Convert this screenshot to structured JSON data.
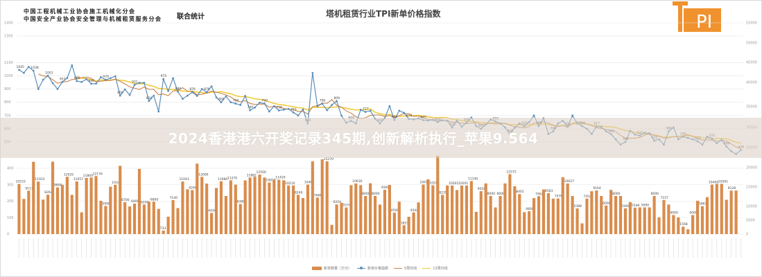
{
  "header": {
    "org_line1": "中国工程机械工业协会施工机械化分会",
    "org_line2": "中国安全产业协会安全管理与机械租赁服务分会",
    "joint_label": "联合统计",
    "title": "塔机租赁行业TPI新单价格指数",
    "logo_text": "TPI",
    "logo_color": "#F0922E"
  },
  "watermark": {
    "text": "2024香港港六开奖记录345期,创新解析执行_苹果9.564"
  },
  "legend": {
    "items": [
      {
        "label": "新单数量（万元）",
        "type": "bar",
        "color": "#D98C4C"
      },
      {
        "label": "新单价格指数",
        "type": "line-marker",
        "color": "#5B8DB8"
      },
      {
        "label": "5周均线",
        "type": "line",
        "color": "#C9824A"
      },
      {
        "label": "13周均线",
        "type": "line",
        "color": "#EFCB3A"
      }
    ]
  },
  "axes": {
    "left_upper_ticks": [
      "1400",
      "1300",
      "1100",
      "1000",
      "900",
      "800",
      "700",
      "600",
      "500"
    ],
    "left_lower_ticks": [
      "400",
      "300",
      "200",
      "100",
      "0"
    ],
    "right_ticks": [
      "55000",
      "50000",
      "45000",
      "40000",
      "35000",
      "30000",
      "25000",
      "20000",
      "15000",
      "10000",
      "5000",
      "0"
    ]
  },
  "chart_data": {
    "type": "bar+line",
    "title": "塔机租赁行业TPI新单价格指数",
    "legend_position": "bottom",
    "grid": true,
    "series": [
      {
        "name": "新单价格指数",
        "type": "line",
        "axis": "left",
        "values": [
          1045,
          1022,
          1067,
          1038,
          900,
          970,
          1001,
          944,
          900,
          953,
          983,
          1079,
          960,
          953,
          974,
          940,
          940,
          990,
          970,
          982,
          997,
          850,
          897,
          855,
          931,
          947,
          947,
          810,
          850,
          730,
          975,
          885,
          982,
          880,
          826,
          850,
          876,
          848,
          900,
          876,
          920,
          837,
          800,
          844,
          800,
          790,
          780,
          848,
          740,
          760,
          797,
          790,
          730,
          770,
          738,
          744,
          750,
          723,
          700,
          745,
          640,
          1021,
          770,
          790,
          740,
          779,
          809,
          699,
          645,
          659,
          640,
          743,
          727,
          736,
          675,
          640,
          680,
          771,
          666,
          736,
          720,
          674,
          670,
          678,
          665,
          662,
          667,
          650,
          664,
          660,
          610,
          660,
          615,
          646,
          684,
          620,
          600,
          630,
          670,
          655,
          640,
          610,
          560,
          608,
          640,
          620,
          650,
          700,
          620,
          680,
          560,
          580,
          640,
          660,
          616,
          700,
          640,
          620,
          600,
          560,
          617,
          613,
          580,
          560,
          520,
          480,
          500,
          584,
          556,
          547,
          570,
          565,
          510,
          520,
          480,
          580,
          610,
          520,
          540,
          530,
          520,
          505,
          480,
          540,
          525,
          490,
          516,
          466,
          430,
          409,
          439
        ]
      },
      {
        "name": "新单数量（万元）",
        "type": "bar",
        "axis": "right",
        "values": [
          10533,
          7382,
          9111,
          15184,
          11033,
          7233,
          8264,
          15210,
          9800,
          10336,
          12025,
          8233,
          11057,
          4572,
          11800,
          11883,
          12176,
          7000,
          5900,
          9951,
          10341,
          14343,
          6700,
          5800,
          6400,
          13686,
          6200,
          6800,
          6800,
          5300,
          733,
          3645,
          7140,
          5455,
          11043,
          9400,
          9240,
          14800,
          12000,
          10600,
          4436,
          9686,
          11080,
          8000,
          11270,
          10395,
          6300,
          11273,
          11882,
          12038,
          12500,
          11879,
          10810,
          11400,
          11420,
          11300,
          10210,
          10209,
          8240,
          7566,
          10400,
          15270,
          7666,
          15700,
          15270,
          1932,
          6224,
          6580,
          5574,
          10262,
          10630,
          10277,
          8000,
          10664,
          8000,
          6200,
          9300,
          10310,
          4500,
          6800,
          1851,
          3630,
          4544,
          6657,
          10410,
          11500,
          10240,
          16443,
          8235,
          10210,
          10201,
          9248,
          10201,
          10194,
          11140,
          4672,
          9020,
          10637,
          8000,
          5600,
          8000,
          10650,
          12572,
          10050,
          8401,
          4600,
          4800,
          7555,
          7962,
          9363,
          8583,
          7440,
          7476,
          11946,
          10627,
          8000,
          5388,
          2250,
          7454,
          9000,
          9164,
          8000,
          6000,
          9281,
          8000,
          8000,
          5400,
          6712,
          5548,
          5600,
          5600,
          5600,
          8000,
          3521,
          7157,
          6200,
          4000,
          3500,
          1568,
          1000,
          4000,
          7000,
          5861,
          7750,
          10400,
          10544,
          10561,
          7200,
          9128,
          9140
        ]
      }
    ],
    "ylim_left": [
      0,
      1400
    ],
    "ylim_right": [
      0,
      55000
    ],
    "xlabel": "",
    "ylabel": ""
  }
}
